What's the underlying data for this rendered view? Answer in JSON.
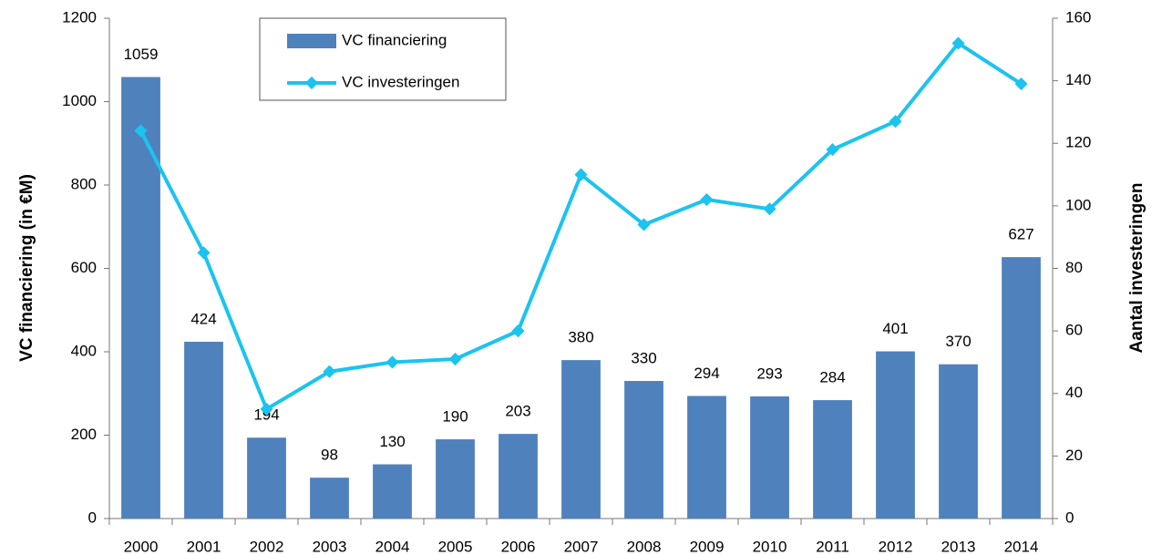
{
  "chart_data": {
    "type": "bar",
    "categories": [
      "2000",
      "2001",
      "2002",
      "2003",
      "2004",
      "2005",
      "2006",
      "2007",
      "2008",
      "2009",
      "2010",
      "2011",
      "2012",
      "2013",
      "2014"
    ],
    "series": [
      {
        "name": "VC financiering",
        "type": "bar",
        "color": "#4f81bd",
        "axis": "y",
        "values": [
          1059,
          424,
          194,
          98,
          130,
          190,
          203,
          380,
          330,
          294,
          293,
          284,
          401,
          370,
          627
        ]
      },
      {
        "name": "VC investeringen",
        "type": "line",
        "color": "#1cc3ef",
        "axis": "y2",
        "values": [
          124,
          85,
          35,
          47,
          50,
          51,
          60,
          110,
          94,
          102,
          99,
          118,
          127,
          152,
          139
        ]
      }
    ],
    "ylabel": "VC financiering (in €M)",
    "y2label": "Aantal investeringen",
    "ylim": [
      0,
      1200
    ],
    "yticks": [
      0,
      200,
      400,
      600,
      800,
      1000,
      1200
    ],
    "y2lim": [
      0,
      160
    ],
    "y2ticks": [
      0,
      20,
      40,
      60,
      80,
      100,
      120,
      140,
      160
    ],
    "legend": "upper left",
    "grid": false
  }
}
